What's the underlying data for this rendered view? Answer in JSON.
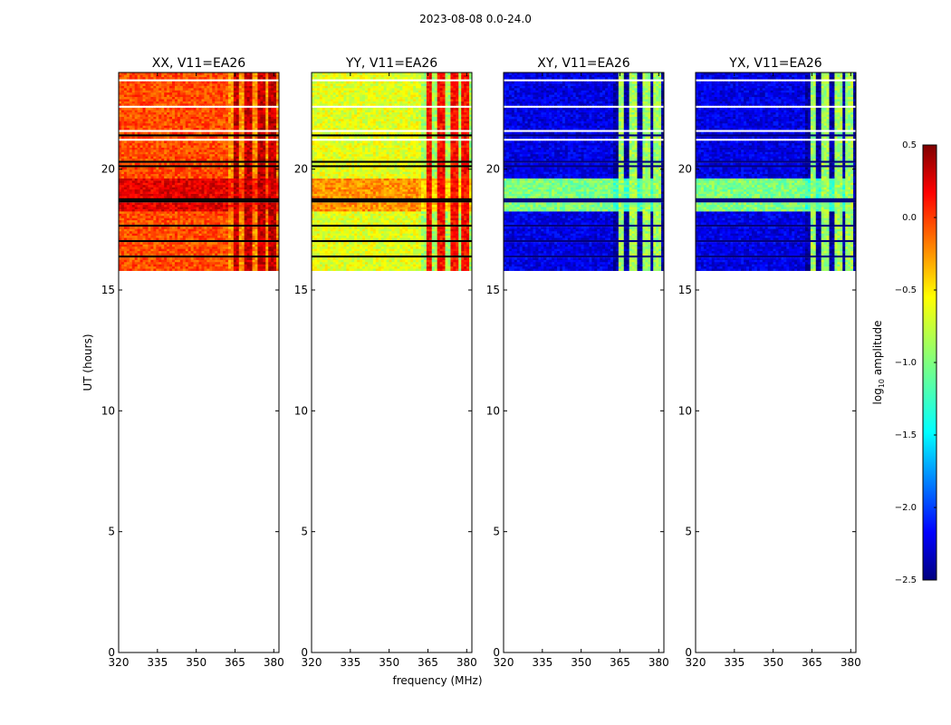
{
  "suptitle": "2023-08-08 0.0-24.0",
  "chart_data": {
    "type": "heatmap",
    "xlabel": "frequency (MHz)",
    "ylabel": "UT (hours)",
    "xlim": [
      320,
      382
    ],
    "ylim": [
      0,
      24
    ],
    "xticks": [
      320,
      335,
      350,
      365,
      380
    ],
    "yticks": [
      0,
      5,
      10,
      15,
      20
    ],
    "data_time_range_hours": [
      15.8,
      24
    ],
    "bright_channel_columns_MHz": [
      [
        364,
        367
      ],
      [
        369,
        372
      ],
      [
        374,
        377
      ],
      [
        378,
        381
      ]
    ],
    "colorbar": {
      "label": "log10 amplitude",
      "range": [
        -2.5,
        0.5
      ],
      "ticks": [
        0.5,
        0.0,
        -0.5,
        -1.0,
        -1.5,
        -2.0,
        -2.5
      ],
      "tick_labels": [
        "0.5",
        "0.0",
        "−0.5",
        "−1.0",
        "−1.5",
        "−2.0",
        "−2.5"
      ],
      "colormap": "jet"
    },
    "panels": [
      {
        "title": "XX, V11=EA26",
        "base_level": -0.1,
        "storm_level": 0.2,
        "column_level": 0.3
      },
      {
        "title": "YY, V11=EA26",
        "base_level": -0.7,
        "storm_level": -0.3,
        "column_level": 0.1
      },
      {
        "title": "XY, V11=EA26",
        "base_level": -2.2,
        "storm_level": -1.0,
        "column_level": -0.9
      },
      {
        "title": "YX, V11=EA26",
        "base_level": -2.2,
        "storm_level": -1.0,
        "column_level": -0.9
      }
    ]
  }
}
